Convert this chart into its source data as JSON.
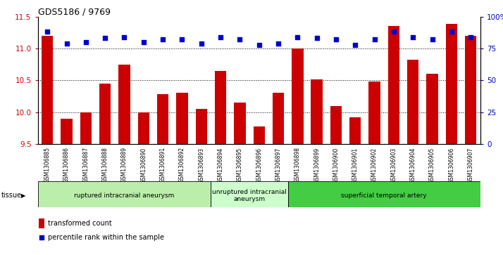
{
  "title": "GDS5186 / 9769",
  "samples": [
    "GSM1306885",
    "GSM1306886",
    "GSM1306887",
    "GSM1306888",
    "GSM1306889",
    "GSM1306890",
    "GSM1306891",
    "GSM1306892",
    "GSM1306893",
    "GSM1306894",
    "GSM1306895",
    "GSM1306896",
    "GSM1306897",
    "GSM1306898",
    "GSM1306899",
    "GSM1306900",
    "GSM1306901",
    "GSM1306902",
    "GSM1306903",
    "GSM1306904",
    "GSM1306905",
    "GSM1306906",
    "GSM1306907"
  ],
  "transformed_count": [
    11.2,
    9.9,
    10.0,
    10.45,
    10.75,
    10.0,
    10.28,
    10.3,
    10.05,
    10.65,
    10.15,
    9.78,
    10.3,
    11.0,
    10.52,
    10.1,
    9.92,
    10.48,
    11.35,
    10.82,
    10.6,
    11.38,
    11.2
  ],
  "percentile_rank": [
    88,
    79,
    80,
    83,
    84,
    80,
    82,
    82,
    79,
    84,
    82,
    78,
    79,
    84,
    83,
    82,
    78,
    82,
    88,
    84,
    82,
    88,
    84
  ],
  "ylim_left": [
    9.5,
    11.5
  ],
  "ylim_right": [
    0,
    100
  ],
  "yticks_left": [
    9.5,
    10.0,
    10.5,
    11.0,
    11.5
  ],
  "yticks_right": [
    0,
    25,
    50,
    75,
    100
  ],
  "ytick_labels_right": [
    "0",
    "25",
    "50",
    "75",
    "100%"
  ],
  "bar_color": "#cc0000",
  "dot_color": "#0000cc",
  "grid_color": "#000000",
  "plot_bg_color": "#ffffff",
  "xtick_bg_color": "#cccccc",
  "groups": [
    {
      "label": "ruptured intracranial aneurysm",
      "start": 0,
      "end": 9,
      "color": "#bbeeaa"
    },
    {
      "label": "unruptured intracranial\naneurysm",
      "start": 9,
      "end": 13,
      "color": "#ccffcc"
    },
    {
      "label": "superficial temporal artery",
      "start": 13,
      "end": 23,
      "color": "#44cc44"
    }
  ],
  "tissue_label": "tissue",
  "legend_bar_label": "transformed count",
  "legend_dot_label": "percentile rank within the sample",
  "dot_size": 18
}
